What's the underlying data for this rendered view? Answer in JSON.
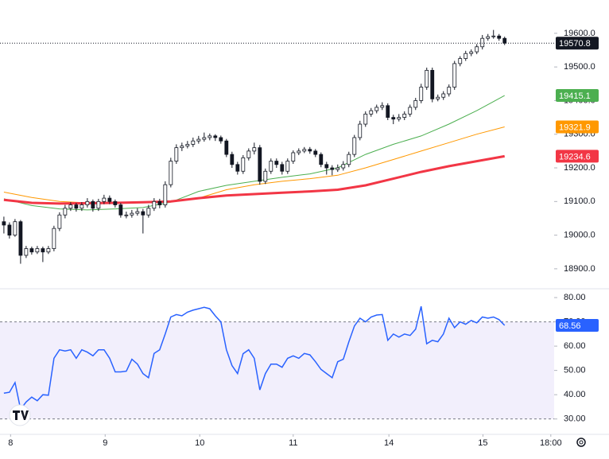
{
  "chart_data": [
    {
      "type": "candlestick",
      "color": "#131722",
      "xlim": [
        -0.7,
        98.9
      ],
      "ylim": [
        18843,
        19699
      ],
      "yticks": [
        {
          "value": 18900,
          "label": "18900.0"
        },
        {
          "value": 19000,
          "label": "19000.0"
        },
        {
          "value": 19100,
          "label": "19100.0"
        },
        {
          "value": 19200,
          "label": "19200.0"
        },
        {
          "value": 19300,
          "label": "19300.0"
        },
        {
          "value": 19400,
          "label": "19400.0"
        },
        {
          "value": 19500,
          "label": "19500.0"
        },
        {
          "value": 19600,
          "label": "19600.0"
        }
      ],
      "ohlc": [
        [
          19040,
          19055,
          19005,
          19030
        ],
        [
          19030,
          19038,
          18990,
          19000
        ],
        [
          19000,
          19048,
          18995,
          19040
        ],
        [
          19040,
          19045,
          18915,
          18940
        ],
        [
          18940,
          18968,
          18932,
          18960
        ],
        [
          18960,
          18966,
          18942,
          18950
        ],
        [
          18950,
          18968,
          18944,
          18960
        ],
        [
          18960,
          18966,
          18920,
          18950
        ],
        [
          18950,
          18968,
          18944,
          18960
        ],
        [
          18960,
          19028,
          18952,
          19020
        ],
        [
          19020,
          19068,
          19012,
          19060
        ],
        [
          19060,
          19090,
          19050,
          19080
        ],
        [
          19080,
          19098,
          19072,
          19090
        ],
        [
          19090,
          19096,
          19070,
          19080
        ],
        [
          19080,
          19098,
          19072,
          19090
        ],
        [
          19090,
          19110,
          19082,
          19100
        ],
        [
          19100,
          19106,
          19070,
          19080
        ],
        [
          19080,
          19108,
          19072,
          19100
        ],
        [
          19100,
          19120,
          19092,
          19110
        ],
        [
          19110,
          19118,
          19092,
          19100
        ],
        [
          19100,
          19106,
          19082,
          19090
        ],
        [
          19090,
          19096,
          19052,
          19060
        ],
        [
          19060,
          19070,
          19050,
          19060
        ],
        [
          19060,
          19075,
          19052,
          19065
        ],
        [
          19065,
          19080,
          19058,
          19070
        ],
        [
          19070,
          19078,
          19005,
          19060
        ],
        [
          19060,
          19090,
          19052,
          19080
        ],
        [
          19080,
          19110,
          19072,
          19100
        ],
        [
          19100,
          19108,
          19080,
          19090
        ],
        [
          19090,
          19160,
          19082,
          19150
        ],
        [
          19150,
          19230,
          19142,
          19220
        ],
        [
          19220,
          19270,
          19212,
          19260
        ],
        [
          19260,
          19275,
          19250,
          19265
        ],
        [
          19265,
          19280,
          19258,
          19270
        ],
        [
          19270,
          19290,
          19262,
          19280
        ],
        [
          19280,
          19295,
          19272,
          19285
        ],
        [
          19285,
          19305,
          19278,
          19290
        ],
        [
          19290,
          19302,
          19282,
          19295
        ],
        [
          19295,
          19300,
          19280,
          19290
        ],
        [
          19290,
          19296,
          19272,
          19280
        ],
        [
          19280,
          19286,
          19232,
          19240
        ],
        [
          19240,
          19248,
          19200,
          19210
        ],
        [
          19210,
          19218,
          19180,
          19190
        ],
        [
          19190,
          19238,
          19182,
          19230
        ],
        [
          19230,
          19258,
          19222,
          19250
        ],
        [
          19250,
          19275,
          19240,
          19260
        ],
        [
          19260,
          19268,
          19150,
          19160
        ],
        [
          19160,
          19198,
          19152,
          19190
        ],
        [
          19190,
          19228,
          19182,
          19220
        ],
        [
          19220,
          19228,
          19200,
          19210
        ],
        [
          19210,
          19218,
          19180,
          19190
        ],
        [
          19190,
          19228,
          19182,
          19220
        ],
        [
          19220,
          19252,
          19212,
          19245
        ],
        [
          19245,
          19258,
          19238,
          19250
        ],
        [
          19250,
          19262,
          19244,
          19255
        ],
        [
          19255,
          19262,
          19242,
          19250
        ],
        [
          19250,
          19256,
          19232,
          19240
        ],
        [
          19240,
          19246,
          19202,
          19210
        ],
        [
          19210,
          19218,
          19180,
          19200
        ],
        [
          19200,
          19208,
          19178,
          19195
        ],
        [
          19195,
          19210,
          19188,
          19200
        ],
        [
          19200,
          19220,
          19192,
          19210
        ],
        [
          19210,
          19248,
          19202,
          19240
        ],
        [
          19240,
          19298,
          19232,
          19290
        ],
        [
          19290,
          19340,
          19282,
          19330
        ],
        [
          19330,
          19368,
          19322,
          19360
        ],
        [
          19360,
          19378,
          19352,
          19370
        ],
        [
          19370,
          19388,
          19362,
          19380
        ],
        [
          19380,
          19395,
          19372,
          19385
        ],
        [
          19385,
          19392,
          19342,
          19350
        ],
        [
          19350,
          19358,
          19330,
          19345
        ],
        [
          19345,
          19360,
          19338,
          19350
        ],
        [
          19350,
          19368,
          19342,
          19360
        ],
        [
          19360,
          19388,
          19352,
          19380
        ],
        [
          19380,
          19408,
          19372,
          19400
        ],
        [
          19400,
          19450,
          19392,
          19440
        ],
        [
          19440,
          19498,
          19432,
          19490
        ],
        [
          19490,
          19498,
          19395,
          19405
        ],
        [
          19405,
          19418,
          19398,
          19410
        ],
        [
          19410,
          19428,
          19402,
          19420
        ],
        [
          19420,
          19448,
          19412,
          19440
        ],
        [
          19440,
          19518,
          19432,
          19510
        ],
        [
          19510,
          19532,
          19502,
          19525
        ],
        [
          19525,
          19548,
          19518,
          19540
        ],
        [
          19540,
          19552,
          19532,
          19545
        ],
        [
          19545,
          19568,
          19538,
          19560
        ],
        [
          19560,
          19595,
          19552,
          19585
        ],
        [
          19585,
          19598,
          19578,
          19590
        ],
        [
          19590,
          19610,
          19584,
          19592
        ],
        [
          19592,
          19598,
          19578,
          19585
        ],
        [
          19585,
          19590,
          19565,
          19570.8
        ]
      ],
      "series": [
        {
          "color": "#4caf50",
          "x": [
            0,
            5,
            10,
            15,
            20,
            25,
            30,
            35,
            40,
            45,
            50,
            55,
            60,
            65,
            70,
            75,
            80,
            85,
            90
          ],
          "values": [
            19108,
            19088,
            19078,
            19075,
            19078,
            19082,
            19098,
            19130,
            19148,
            19160,
            19172,
            19182,
            19200,
            19240,
            19270,
            19295,
            19330,
            19370,
            19415.1
          ]
        },
        {
          "color": "#ff9800",
          "x": [
            0,
            5,
            10,
            15,
            20,
            25,
            30,
            35,
            40,
            45,
            50,
            55,
            60,
            65,
            70,
            75,
            80,
            85,
            90
          ],
          "values": [
            19128,
            19112,
            19100,
            19096,
            19095,
            19098,
            19102,
            19110,
            19135,
            19150,
            19160,
            19168,
            19178,
            19200,
            19225,
            19250,
            19275,
            19300,
            19321.9
          ]
        },
        {
          "color": "#f23645",
          "x": [
            0,
            5,
            10,
            15,
            20,
            25,
            30,
            35,
            40,
            45,
            50,
            55,
            60,
            65,
            70,
            75,
            80,
            85,
            90
          ],
          "values": [
            19105,
            19096,
            19094,
            19095,
            19096,
            19098,
            19100,
            19110,
            19118,
            19122,
            19126,
            19130,
            19135,
            19148,
            19168,
            19188,
            19205,
            19220,
            19234.6
          ]
        }
      ]
    },
    {
      "type": "line",
      "color": "#2962ff",
      "xlim": [
        -0.7,
        98.9
      ],
      "xticks": [
        {
          "value": 1.2,
          "label": "8"
        },
        {
          "value": 18.2,
          "label": "9"
        },
        {
          "value": 35.2,
          "label": "10"
        },
        {
          "value": 52.0,
          "label": "11"
        },
        {
          "value": 69.2,
          "label": "14"
        },
        {
          "value": 86.1,
          "label": "15"
        },
        {
          "value": 98.3,
          "label": "18:00"
        }
      ],
      "ylim": [
        24,
        83.3
      ],
      "yticks": [
        {
          "value": 30,
          "label": "30.00"
        },
        {
          "value": 40,
          "label": "40.00"
        },
        {
          "value": 50,
          "label": "50.00"
        },
        {
          "value": 60,
          "label": "60.00"
        },
        {
          "value": 70,
          "label": "70.00"
        },
        {
          "value": 80,
          "label": "80.00"
        }
      ],
      "levels": [
        30,
        70
      ],
      "values": [
        40.6,
        41,
        45,
        34,
        37,
        39,
        37.5,
        40,
        39.8,
        55,
        58.5,
        58,
        58.5,
        55,
        58.5,
        57.5,
        56,
        58.5,
        58.5,
        55,
        49.4,
        49.4,
        49.7,
        54.6,
        52.6,
        48.7,
        47,
        57,
        58.5,
        65,
        72,
        73,
        72.5,
        74,
        74.8,
        75.4,
        76,
        75.4,
        72.5,
        70,
        58.5,
        52,
        48.7,
        56.9,
        58.5,
        55,
        42,
        48.7,
        52.6,
        52.6,
        51.3,
        55,
        56,
        55,
        57,
        56.4,
        53.6,
        50.4,
        48.7,
        47,
        53.6,
        54.6,
        61.8,
        68.3,
        71.5,
        70,
        72,
        72.8,
        73,
        62.4,
        65,
        63.7,
        65,
        64.4,
        67,
        76.4,
        61,
        62.4,
        61.8,
        65,
        71.5,
        67.6,
        70,
        69,
        70.6,
        69.6,
        72,
        71.5,
        72,
        70.9,
        68.56
      ]
    }
  ]
}
